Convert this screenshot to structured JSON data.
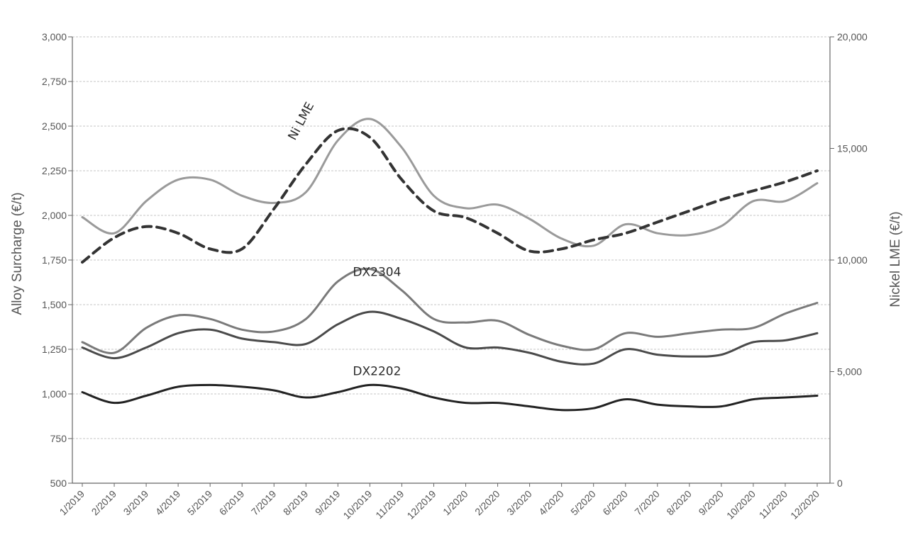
{
  "chart_data": {
    "type": "line",
    "categories": [
      "1/2019",
      "2/2019",
      "3/2019",
      "4/2019",
      "5/2019",
      "6/2019",
      "7/2019",
      "8/2019",
      "9/2019",
      "10/2019",
      "11/2019",
      "12/2019",
      "1/2020",
      "2/2020",
      "3/2020",
      "4/2020",
      "5/2020",
      "6/2020",
      "7/2020",
      "8/2020",
      "9/2020",
      "10/2020",
      "11/2020",
      "12/2020"
    ],
    "xlabel": "",
    "ylabel": "Alloy Surcharge (€/t)",
    "y2label": "Nickel LME (€/t)",
    "ylim": [
      500,
      3000
    ],
    "y2lim": [
      0,
      20000
    ],
    "yticks": [
      "3,000",
      "2,750",
      "2,500",
      "2,250",
      "2,000",
      "1,750",
      "1,500",
      "1,250",
      "1,000",
      "750",
      "500"
    ],
    "y2ticks": [
      "20,000",
      "15,000",
      "10,000",
      "5,000",
      "0"
    ],
    "grid": true,
    "series": [
      {
        "name": "",
        "axis": "left",
        "style": "solid",
        "color": "#9a9a9a",
        "values": [
          1990,
          1900,
          2080,
          2200,
          2200,
          2110,
          2070,
          2130,
          2420,
          2540,
          2380,
          2110,
          2040,
          2060,
          1980,
          1870,
          1830,
          1950,
          1900,
          1890,
          1940,
          2080,
          2080,
          2180
        ]
      },
      {
        "name": "Ni LME",
        "axis": "right",
        "style": "dashed",
        "color": "#333333",
        "values": [
          9900,
          11000,
          11500,
          11200,
          10500,
          10500,
          12300,
          14300,
          15800,
          15500,
          13600,
          12200,
          11900,
          11200,
          10400,
          10500,
          10900,
          11200,
          11700,
          12200,
          12700,
          13100,
          13500,
          14000
        ]
      },
      {
        "name": "DX2304",
        "axis": "left",
        "style": "solid",
        "color": "#7a7a7a",
        "values": [
          1290,
          1230,
          1370,
          1440,
          1420,
          1360,
          1350,
          1420,
          1630,
          1700,
          1580,
          1420,
          1400,
          1410,
          1330,
          1270,
          1250,
          1340,
          1320,
          1340,
          1360,
          1370,
          1450,
          1510
        ]
      },
      {
        "name": "",
        "axis": "left",
        "style": "solid",
        "color": "#4a4a4a",
        "values": [
          1260,
          1200,
          1260,
          1340,
          1360,
          1310,
          1290,
          1280,
          1390,
          1460,
          1420,
          1350,
          1260,
          1260,
          1230,
          1180,
          1170,
          1250,
          1220,
          1210,
          1220,
          1290,
          1300,
          1340
        ]
      },
      {
        "name": "DX2202",
        "axis": "left",
        "style": "solid",
        "color": "#222222",
        "values": [
          1010,
          950,
          990,
          1040,
          1050,
          1040,
          1020,
          980,
          1010,
          1050,
          1030,
          980,
          950,
          950,
          930,
          910,
          920,
          970,
          940,
          930,
          930,
          970,
          980,
          990
        ]
      }
    ]
  }
}
